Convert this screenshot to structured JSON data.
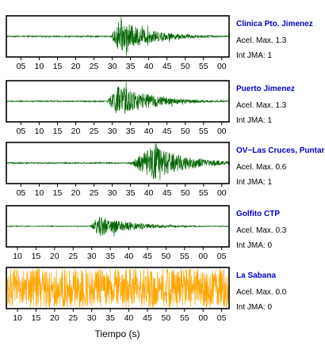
{
  "chart_data": [
    {
      "type": "line",
      "station": "Clinica Pto. Jimenez",
      "accel_label": "Acel. Max. 1.3",
      "jma_label": "Int JMA: 1",
      "color": "#006400",
      "tick_labels": [
        "05",
        "10",
        "15",
        "20",
        "25",
        "30",
        "35",
        "40",
        "45",
        "50",
        "55",
        "00"
      ],
      "x_range_s": [
        1,
        62
      ],
      "ticks_start_s": 5,
      "tick_step_s": 5,
      "onset_s": 29.5,
      "peak_s": 31,
      "relative_peak": 0.95,
      "noise_level": 0.03
    },
    {
      "type": "line",
      "station": "Puerto Jimenez",
      "accel_label": "Acel. Max. 1.3",
      "jma_label": "Int JMA: 1",
      "color": "#006400",
      "tick_labels": [
        "05",
        "10",
        "15",
        "20",
        "25",
        "30",
        "35",
        "40",
        "45",
        "50",
        "55",
        "00"
      ],
      "x_range_s": [
        1,
        62
      ],
      "ticks_start_s": 5,
      "tick_step_s": 5,
      "onset_s": 28.5,
      "peak_s": 31,
      "relative_peak": 0.95,
      "noise_level": 0.03
    },
    {
      "type": "line",
      "station": "OV−Las Cruces, Puntar",
      "accel_label": "Acel. Max. 0.6",
      "jma_label": "Int JMA: 1",
      "color": "#006400",
      "tick_labels": [
        "05",
        "10",
        "15",
        "20",
        "25",
        "30",
        "35",
        "40",
        "45",
        "50",
        "55",
        "00"
      ],
      "x_range_s": [
        1,
        62
      ],
      "ticks_start_s": 5,
      "tick_step_s": 5,
      "onset_s": 34.5,
      "peak_s": 41,
      "relative_peak": 0.95,
      "noise_level": 0.03
    },
    {
      "type": "line",
      "station": "Golfito CTP",
      "accel_label": "Acel. Max. 0.3",
      "jma_label": "Int JMA: 0",
      "color": "#006400",
      "tick_labels": [
        "10",
        "15",
        "20",
        "25",
        "30",
        "35",
        "40",
        "45",
        "50",
        "55",
        "00",
        "05"
      ],
      "x_range_s": [
        7,
        67
      ],
      "ticks_start_s": 10,
      "tick_step_s": 5,
      "onset_s": 29.5,
      "peak_s": 31,
      "relative_peak": 0.6,
      "noise_level": 0.02
    },
    {
      "type": "line",
      "station": "La Sabana",
      "accel_label": "Acel. Max. 0.0",
      "jma_label": "Int JMA: 0",
      "color": "#ffa500",
      "tick_labels": [
        "10",
        "15",
        "20",
        "25",
        "30",
        "35",
        "40",
        "45",
        "50",
        "55",
        "00",
        "05"
      ],
      "x_range_s": [
        7,
        67
      ],
      "ticks_start_s": 10,
      "tick_step_s": 5,
      "onset_s": null,
      "peak_s": null,
      "relative_peak": 0.95,
      "noise_level": 0.55
    }
  ],
  "figure": {
    "xlabel": "Tiempo (s)",
    "station_name_color": "#0000cc"
  }
}
